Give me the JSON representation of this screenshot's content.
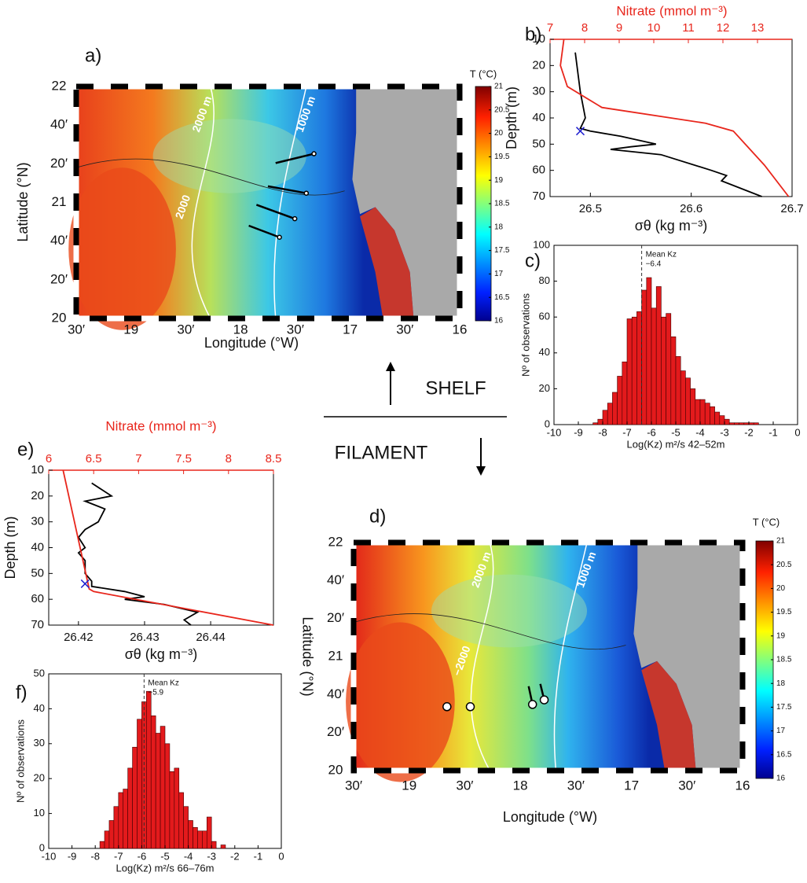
{
  "labels": {
    "shelf": "SHELF",
    "filament": "FILAMENT"
  },
  "chart_data": [
    {
      "type": "map",
      "panel_label": "a)",
      "xlabel": "Longitude (°W)",
      "ylabel": "Latitude (°N)",
      "lat_labels": [
        "22",
        "40′",
        "20′",
        "21",
        "40′",
        "20′",
        "20"
      ],
      "lon_labels": [
        "30′",
        "19",
        "30′",
        "18",
        "30′",
        "17",
        "30′",
        "16"
      ],
      "contour_labels": [
        "2000 m",
        "1000 m",
        "2000"
      ],
      "colorbar": {
        "label": "T (°C)",
        "lim": [
          16,
          21
        ],
        "ticks": [
          16,
          16.5,
          17,
          17.5,
          18,
          18.5,
          19,
          19.5,
          20,
          20.5,
          21
        ]
      }
    },
    {
      "type": "profile",
      "panel_label": "b)",
      "top_label": "Nitrate (mmol m⁻³)",
      "xlabel": "σθ (kg m⁻³)",
      "ylabel": "Depth (m)",
      "xlim": [
        26.46,
        26.7
      ],
      "xticks": [
        26.5,
        26.6,
        26.7
      ],
      "x2lim": [
        7,
        14
      ],
      "x2ticks": [
        7,
        8,
        9,
        10,
        11,
        12,
        13
      ],
      "ylim": [
        10,
        70
      ],
      "yticks": [
        10,
        20,
        30,
        40,
        50,
        60,
        70
      ],
      "series": [
        {
          "color": "#000000",
          "x": [
            26.485,
            26.49,
            26.495,
            26.49,
            26.5,
            26.53,
            26.565,
            26.54,
            26.52,
            26.57,
            26.62,
            26.635,
            26.63,
            26.67
          ],
          "y": [
            15,
            30,
            40,
            44,
            45,
            47,
            50,
            51,
            52,
            54,
            60,
            62,
            64,
            70
          ]
        },
        {
          "color": "#e8261c",
          "axis": "x2",
          "x": [
            7.4,
            7.3,
            7.5,
            8.5,
            11.5,
            12.3,
            13.2,
            13.9
          ],
          "y": [
            10,
            20,
            28,
            36,
            42,
            45,
            58,
            70
          ]
        }
      ],
      "marker": {
        "x": 26.49,
        "y": 45,
        "color": "#1f1fd0"
      }
    },
    {
      "type": "histogram",
      "panel_label": "c)",
      "xlabel": "Log(Kz) m²/s 42–52m",
      "ylabel": "Nº of observations",
      "color": "#e31a1c",
      "bins": [
        -8.4,
        -8.2,
        -8.0,
        -7.8,
        -7.6,
        -7.4,
        -7.2,
        -7.0,
        -6.8,
        -6.6,
        -6.4,
        -6.2,
        -6.0,
        -5.8,
        -5.6,
        -5.4,
        -5.2,
        -5.0,
        -4.8,
        -4.6,
        -4.4,
        -4.2,
        -4.0,
        -3.8,
        -3.6,
        -3.4,
        -3.2,
        -3.0,
        -2.8,
        -2.6,
        -2.4,
        -2.2,
        -2.0,
        -1.8,
        -1.6
      ],
      "values": [
        1,
        3,
        8,
        12,
        18,
        27,
        35,
        59,
        60,
        63,
        75,
        82,
        65,
        77,
        60,
        62,
        49,
        38,
        30,
        26,
        20,
        14,
        14,
        12,
        10,
        7,
        5,
        3,
        1,
        1,
        1,
        1,
        1,
        1
      ],
      "xlim": [
        -10,
        0
      ],
      "xticks": [
        -10,
        -9,
        -8,
        -7,
        -6,
        -5,
        -4,
        -3,
        -2,
        -1,
        0
      ],
      "ylim": [
        0,
        100
      ],
      "yticks": [
        0,
        20,
        40,
        60,
        80,
        100
      ],
      "mean": -6.4,
      "mean_text": "Mean Kz",
      "mean_label": "−6.4"
    },
    {
      "type": "map",
      "panel_label": "d)",
      "xlabel": "Longitude (°W)",
      "ylabel": "Latitude (°N)",
      "lat_labels": [
        "22",
        "40′",
        "20′",
        "21",
        "40′",
        "20′",
        "20"
      ],
      "lon_labels": [
        "30′",
        "19",
        "30′",
        "18",
        "30′",
        "17",
        "30′",
        "16"
      ],
      "contour_labels": [
        "2000 m",
        "1000 m",
        "−2000"
      ],
      "colorbar": {
        "label": "T (°C)",
        "lim": [
          16,
          21
        ],
        "ticks": [
          16,
          16.5,
          17,
          17.5,
          18,
          18.5,
          19,
          19.5,
          20,
          20.5,
          21
        ]
      }
    },
    {
      "type": "profile",
      "panel_label": "e)",
      "top_label": "Nitrate (mmol m⁻³)",
      "xlabel": "σθ (kg m⁻³)",
      "ylabel": "Depth (m)",
      "xlim": [
        26.4155,
        26.4495
      ],
      "xticks": [
        26.42,
        26.43,
        26.44
      ],
      "x2lim": [
        6,
        8.5
      ],
      "x2ticks": [
        6,
        6.5,
        7,
        7.5,
        8,
        8.5
      ],
      "ylim": [
        10,
        70
      ],
      "yticks": [
        10,
        20,
        30,
        40,
        50,
        60,
        70
      ],
      "series": [
        {
          "color": "#000000",
          "x": [
            26.422,
            26.425,
            26.421,
            26.424,
            26.423,
            26.421,
            26.42,
            26.421,
            26.42,
            26.421,
            26.421,
            26.422,
            26.422,
            26.427,
            26.43,
            26.427,
            26.433,
            26.438,
            26.436,
            26.437
          ],
          "y": [
            15,
            20,
            22,
            25,
            30,
            33,
            36,
            40,
            42,
            45,
            50,
            53,
            55,
            57,
            59,
            60,
            62,
            65,
            68,
            70
          ]
        },
        {
          "color": "#e8261c",
          "axis": "x2",
          "x": [
            6.16,
            6.45,
            6.5,
            8.5
          ],
          "y": [
            10,
            56,
            57,
            70
          ]
        }
      ],
      "marker": {
        "x": 26.421,
        "y": 54,
        "color": "#1f1fd0"
      }
    },
    {
      "type": "histogram",
      "panel_label": "f)",
      "xlabel": "Log(Kz) m²/s 66–76m",
      "ylabel": "Nº of observations",
      "color": "#e31a1c",
      "bins": [
        -7.8,
        -7.6,
        -7.4,
        -7.2,
        -7.0,
        -6.8,
        -6.6,
        -6.4,
        -6.2,
        -6.0,
        -5.8,
        -5.6,
        -5.4,
        -5.2,
        -5.0,
        -4.8,
        -4.6,
        -4.4,
        -4.2,
        -4.0,
        -3.8,
        -3.6,
        -3.4,
        -3.2,
        -3.0,
        -2.8,
        -2.6,
        -2.4
      ],
      "values": [
        2,
        5,
        8,
        12,
        16,
        17,
        23,
        29,
        37,
        42,
        45,
        38,
        33,
        35,
        30,
        22,
        23,
        16,
        12,
        8,
        6,
        5,
        5,
        9,
        2,
        0,
        1
      ],
      "xlim": [
        -10,
        0
      ],
      "xticks": [
        -10,
        -9,
        -8,
        -7,
        -6,
        -5,
        -4,
        -3,
        -2,
        -1,
        0
      ],
      "ylim": [
        0,
        50
      ],
      "yticks": [
        0,
        10,
        20,
        30,
        40,
        50
      ],
      "mean": -5.9,
      "mean_text": "Mean Kz",
      "mean_label": "−5.9"
    }
  ]
}
